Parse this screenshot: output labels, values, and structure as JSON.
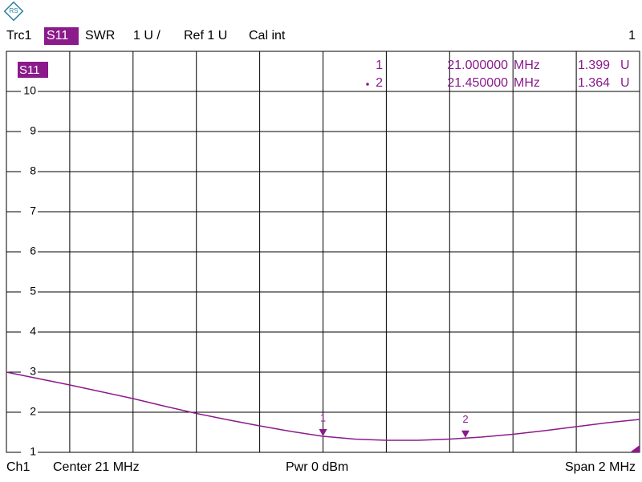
{
  "header": {
    "trace": "Trc1",
    "parameter": "S11",
    "format": "SWR",
    "scale": "1 U /",
    "reference": "Ref 1 U",
    "calibration": "Cal int",
    "channel_number": "1"
  },
  "footer": {
    "channel": "Ch1",
    "center": "Center 21 MHz",
    "power": "Pwr 0 dBm",
    "span": "Span 2 MHz"
  },
  "chart_data": {
    "type": "line",
    "x": [
      20.0,
      20.1,
      20.2,
      20.3,
      20.4,
      20.5,
      20.6,
      20.7,
      20.8,
      20.9,
      21.0,
      21.1,
      21.2,
      21.3,
      21.4,
      21.5,
      21.6,
      21.7,
      21.8,
      21.9,
      22.0
    ],
    "series": [
      {
        "color": "#8b1a8b",
        "values": [
          3.0,
          2.84,
          2.68,
          2.51,
          2.34,
          2.15,
          1.97,
          1.81,
          1.66,
          1.52,
          1.4,
          1.33,
          1.3,
          1.3,
          1.33,
          1.38,
          1.45,
          1.54,
          1.64,
          1.74,
          1.82
        ]
      }
    ],
    "xlim": [
      20,
      22
    ],
    "xgrid": [
      20.2,
      20.4,
      20.6,
      20.8,
      21.0,
      21.2,
      21.4,
      21.6,
      21.8
    ],
    "ylim": [
      1,
      11
    ],
    "yticks": [
      1,
      2,
      3,
      4,
      5,
      6,
      7,
      8,
      9,
      10
    ],
    "markers": {
      "names": [
        "1",
        "2"
      ],
      "x": [
        21,
        21.45
      ],
      "x_labels": [
        "21.000000",
        "21.450000"
      ],
      "x_unit": "MHz",
      "values": [
        1.399,
        1.364
      ],
      "unit": "U"
    }
  }
}
